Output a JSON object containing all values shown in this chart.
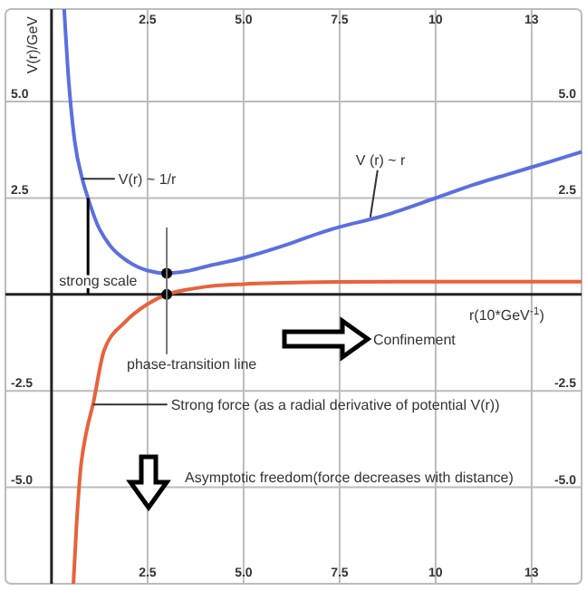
{
  "chart_data": {
    "type": "line",
    "xlabel": "r(10*GeV$^{-1}$)",
    "ylabel": "V(r)/GeV",
    "xlim": [
      -1.2,
      13.8
    ],
    "ylim": [
      -7.5,
      7.4
    ],
    "xticks": [
      {
        "value": 2.5,
        "label": "2.5"
      },
      {
        "value": 5,
        "label": "5.0"
      },
      {
        "value": 7.5,
        "label": "7.5"
      },
      {
        "value": 10,
        "label": "10"
      },
      {
        "value": 12.5,
        "label": "13"
      }
    ],
    "x2lim": [
      -1.2,
      13.8
    ],
    "x2ticks": [
      {
        "value": 2.5,
        "label": "2.5"
      },
      {
        "value": 5,
        "label": "5.0"
      },
      {
        "value": 7.5,
        "label": "7.5"
      },
      {
        "value": 10,
        "label": "10"
      },
      {
        "value": 12.5,
        "label": "13"
      }
    ],
    "yticks": [
      {
        "value": 5,
        "label": "5.0"
      },
      2.5,
      -2.5,
      {
        "value": -5,
        "label": "-5.0"
      }
    ],
    "y2lim": [
      -7.5,
      7.4
    ],
    "y2ticks": [
      {
        "value": 5,
        "label": "5.0"
      },
      2.5,
      -2.5,
      {
        "value": -5,
        "label": "-5.0"
      }
    ],
    "grid": true,
    "series": [
      {
        "color": "#5b6fe0",
        "x": [
          0.33,
          0.45,
          0.6,
          0.8,
          0.95,
          1.2,
          1.5,
          2.0,
          2.5,
          3.0,
          3.5,
          4,
          5,
          6,
          7,
          7.5,
          8.5,
          10,
          11,
          12,
          13,
          13.8
        ],
        "values": [
          7.4,
          5.5,
          4.0,
          3.0,
          2.5,
          1.8,
          1.3,
          0.85,
          0.62,
          0.55,
          0.6,
          0.72,
          0.95,
          1.25,
          1.6,
          1.75,
          2.0,
          2.5,
          2.85,
          3.15,
          3.45,
          3.7
        ]
      },
      {
        "color": "#e8623a",
        "x": [
          0.57,
          0.65,
          0.75,
          0.9,
          1.08,
          1.37,
          1.93,
          2.5,
          3,
          3.5,
          4,
          5,
          6,
          7,
          9,
          13.8
        ],
        "values": [
          -7.5,
          -6,
          -4.6,
          -3.6,
          -2.85,
          -1.45,
          -0.7,
          -0.25,
          0,
          0.12,
          0.2,
          0.27,
          0.3,
          0.32,
          0.33,
          0.33
        ]
      },
      {
        "type": "scatter",
        "color": "#000000",
        "x": [
          3,
          3
        ],
        "values": [
          0.55,
          0
        ],
        "marker": "circle"
      }
    ],
    "annotations": [
      {
        "text": "V(r) ~ 1/r",
        "x": 0.8,
        "y": 3.0
      },
      {
        "text": "V (r) ~ r",
        "x": 8.3,
        "y": 2.0
      },
      {
        "text": "strong scale",
        "x": 0.95,
        "y": 2.5
      },
      "phase-transition line",
      "Confinement",
      {
        "text": "Strong force (as a radial derivative of potential V(r))",
        "x": 1.08,
        "y": -2.85
      },
      "Asymptotic freedom(force decreases with distance)"
    ]
  }
}
